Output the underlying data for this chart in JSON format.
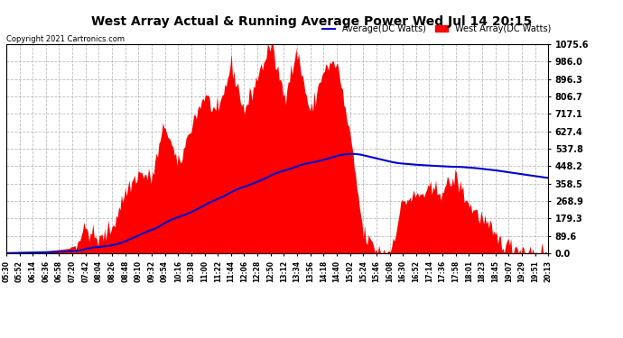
{
  "title": "West Array Actual & Running Average Power Wed Jul 14 20:15",
  "copyright": "Copyright 2021 Cartronics.com",
  "legend_avg": "Average(DC Watts)",
  "legend_west": "West Array(DC Watts)",
  "ylabel_values": [
    0.0,
    89.6,
    179.3,
    268.9,
    358.5,
    448.2,
    537.8,
    627.4,
    717.1,
    806.7,
    896.3,
    986.0,
    1075.6
  ],
  "ymax": 1075.6,
  "ymin": 0.0,
  "bar_color": "#FF0000",
  "avg_color": "#0000CC",
  "background_color": "#FFFFFF",
  "grid_color": "#AAAAAA",
  "title_color": "#000000",
  "copyright_color": "#000000",
  "legend_avg_color": "#0000CC",
  "legend_west_color": "#FF0000",
  "time_labels": [
    "05:30",
    "05:52",
    "06:14",
    "06:36",
    "06:58",
    "07:20",
    "07:42",
    "08:04",
    "08:26",
    "08:48",
    "09:10",
    "09:32",
    "09:54",
    "10:16",
    "10:38",
    "11:00",
    "11:22",
    "11:44",
    "12:06",
    "12:28",
    "12:50",
    "13:12",
    "13:34",
    "13:56",
    "14:18",
    "14:40",
    "15:02",
    "15:24",
    "15:46",
    "16:08",
    "16:30",
    "16:52",
    "17:14",
    "17:36",
    "17:58",
    "18:01",
    "18:23",
    "18:45",
    "19:07",
    "19:29",
    "19:51",
    "20:13"
  ]
}
